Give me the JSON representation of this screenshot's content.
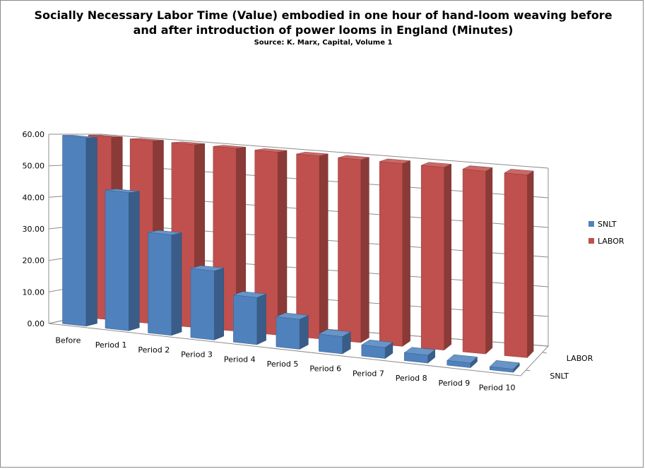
{
  "chart_data": {
    "type": "bar",
    "title_lines": [
      "Socially Necessary Labor Time (Value) embodied in one hour of hand-loom weaving before",
      "and after introduction of power looms in England (Minutes)"
    ],
    "subtitle": "Source: K. Marx, Capital, Volume 1",
    "categories": [
      "Before",
      "Period 1",
      "Period 2",
      "Period 3",
      "Period 4",
      "Period 5",
      "Period 6",
      "Period 7",
      "Period 8",
      "Period 9",
      "Period 10"
    ],
    "series": [
      {
        "name": "SNLT",
        "color": "#4f81bd",
        "values": [
          60,
          44,
          32,
          22,
          15,
          9.5,
          5.5,
          3.5,
          2.5,
          1.5,
          1.0
        ]
      },
      {
        "name": "LABOR",
        "color": "#c0504d",
        "values": [
          60,
          60,
          60,
          60,
          60,
          60,
          60,
          60,
          60,
          60,
          60
        ]
      }
    ],
    "depth_labels": [
      "LABOR",
      "SNLT"
    ],
    "y_ticks": [
      "0.00",
      "10.00",
      "20.00",
      "30.00",
      "40.00",
      "50.00",
      "60.00"
    ],
    "ylim": [
      0,
      60
    ],
    "grid": true,
    "legend_position": "right",
    "view": "3-D column"
  }
}
